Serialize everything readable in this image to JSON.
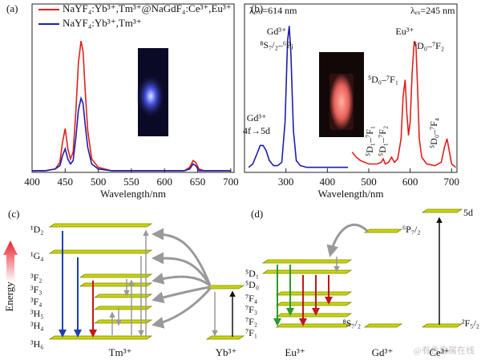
{
  "chart_data": [
    {
      "type": "line",
      "panel_label": "(a)",
      "x_label": "Wavelength/nm",
      "xlim": [
        400,
        705
      ],
      "xticks": [
        400,
        450,
        500,
        550,
        600,
        650,
        700
      ],
      "ylim": [
        0,
        1
      ],
      "legend": "upper left",
      "x": [
        400,
        420,
        435,
        442,
        446,
        450,
        454,
        458,
        462,
        466,
        470,
        474,
        477,
        480,
        484,
        490,
        500,
        520,
        560,
        600,
        630,
        638,
        643,
        647,
        652,
        660,
        680,
        700
      ],
      "series": [
        {
          "name": "NaYF₄:Yb³⁺,Tm³⁺@NaGdF₄:Ce³⁺,Eu³⁺",
          "color": "#e0201b",
          "values": [
            0.01,
            0.01,
            0.02,
            0.06,
            0.18,
            0.26,
            0.14,
            0.08,
            0.12,
            0.35,
            0.65,
            0.78,
            0.72,
            0.5,
            0.25,
            0.08,
            0.03,
            0.01,
            0.01,
            0.01,
            0.01,
            0.03,
            0.07,
            0.06,
            0.02,
            0.01,
            0.01,
            0.01
          ]
        },
        {
          "name": "NaYF₄:Yb³⁺,Tm³⁺",
          "color": "#1c1fa8",
          "values": [
            0.01,
            0.01,
            0.02,
            0.04,
            0.1,
            0.14,
            0.08,
            0.05,
            0.07,
            0.2,
            0.37,
            0.44,
            0.41,
            0.29,
            0.15,
            0.05,
            0.02,
            0.01,
            0.01,
            0.01,
            0.01,
            0.02,
            0.05,
            0.04,
            0.01,
            0.01,
            0.01,
            0.01
          ]
        }
      ]
    },
    {
      "type": "line",
      "panel_label": "(b)",
      "x_label": "Wavelength/nm",
      "xlim": [
        200,
        713
      ],
      "xticks": [
        300,
        400,
        500,
        600,
        700
      ],
      "ylim": [
        0,
        1
      ],
      "series": [
        {
          "color": "#1c1fa8",
          "x": [
            210,
            220,
            230,
            238,
            245,
            252,
            260,
            270,
            280,
            290,
            298,
            304,
            308,
            312,
            318,
            325,
            335,
            350,
            380,
            420,
            450
          ],
          "values": [
            0.03,
            0.05,
            0.11,
            0.16,
            0.16,
            0.13,
            0.07,
            0.04,
            0.04,
            0.06,
            0.3,
            0.78,
            0.87,
            0.7,
            0.25,
            0.07,
            0.04,
            0.03,
            0.03,
            0.03,
            0.03
          ]
        },
        {
          "color": "#e0201b",
          "x": [
            460,
            470,
            480,
            500,
            520,
            530,
            535,
            540,
            548,
            555,
            562,
            570,
            578,
            583,
            588,
            592,
            596,
            600,
            605,
            610,
            614,
            618,
            622,
            628,
            640,
            660,
            675,
            683,
            689,
            695,
            700,
            710
          ],
          "values": [
            0.12,
            0.09,
            0.07,
            0.05,
            0.05,
            0.06,
            0.08,
            0.05,
            0.06,
            0.09,
            0.06,
            0.08,
            0.2,
            0.45,
            0.55,
            0.35,
            0.22,
            0.3,
            0.6,
            0.78,
            0.75,
            0.5,
            0.2,
            0.09,
            0.05,
            0.04,
            0.06,
            0.15,
            0.2,
            0.12,
            0.05,
            0.03
          ]
        }
      ],
      "annotations": [
        "λₑₘ=614 nm",
        "λₑₓ=245 nm",
        "Gd³⁺",
        "⁸S₇/₂–⁶Pⱼ",
        "Gd³⁺",
        "4f→5d",
        "Eu³⁺",
        "⁵D₀–⁷F₂",
        "⁵D₀–⁷F₁",
        "⁵D₁–⁷F₁",
        "⁵D₁–⁷F₂",
        "⁵D₀–⁷F₄"
      ]
    }
  ],
  "diagrams": [
    {
      "panel_label": "(c)",
      "axis_label": "Energy",
      "levels": [
        "¹D₂",
        "¹G₄",
        "³F₂",
        "³F₃",
        "³F₄",
        "³H₅",
        "³H₄",
        "³H₆"
      ],
      "ions": [
        "Tm³⁺",
        "Yb³⁺"
      ]
    },
    {
      "panel_label": "(d)",
      "levels": [
        "⁵D₁",
        "⁵D₀",
        "⁷F₄",
        "⁷F₃",
        "⁷F₂",
        "⁷F₁",
        "⁶P₇/₂",
        "⁸S₇/₂",
        "5d",
        "²F₅/₂"
      ],
      "ions": [
        "Eu³⁺",
        "Gd³⁺",
        "Ce³⁺"
      ]
    }
  ],
  "watermark": "@有色金属在线"
}
